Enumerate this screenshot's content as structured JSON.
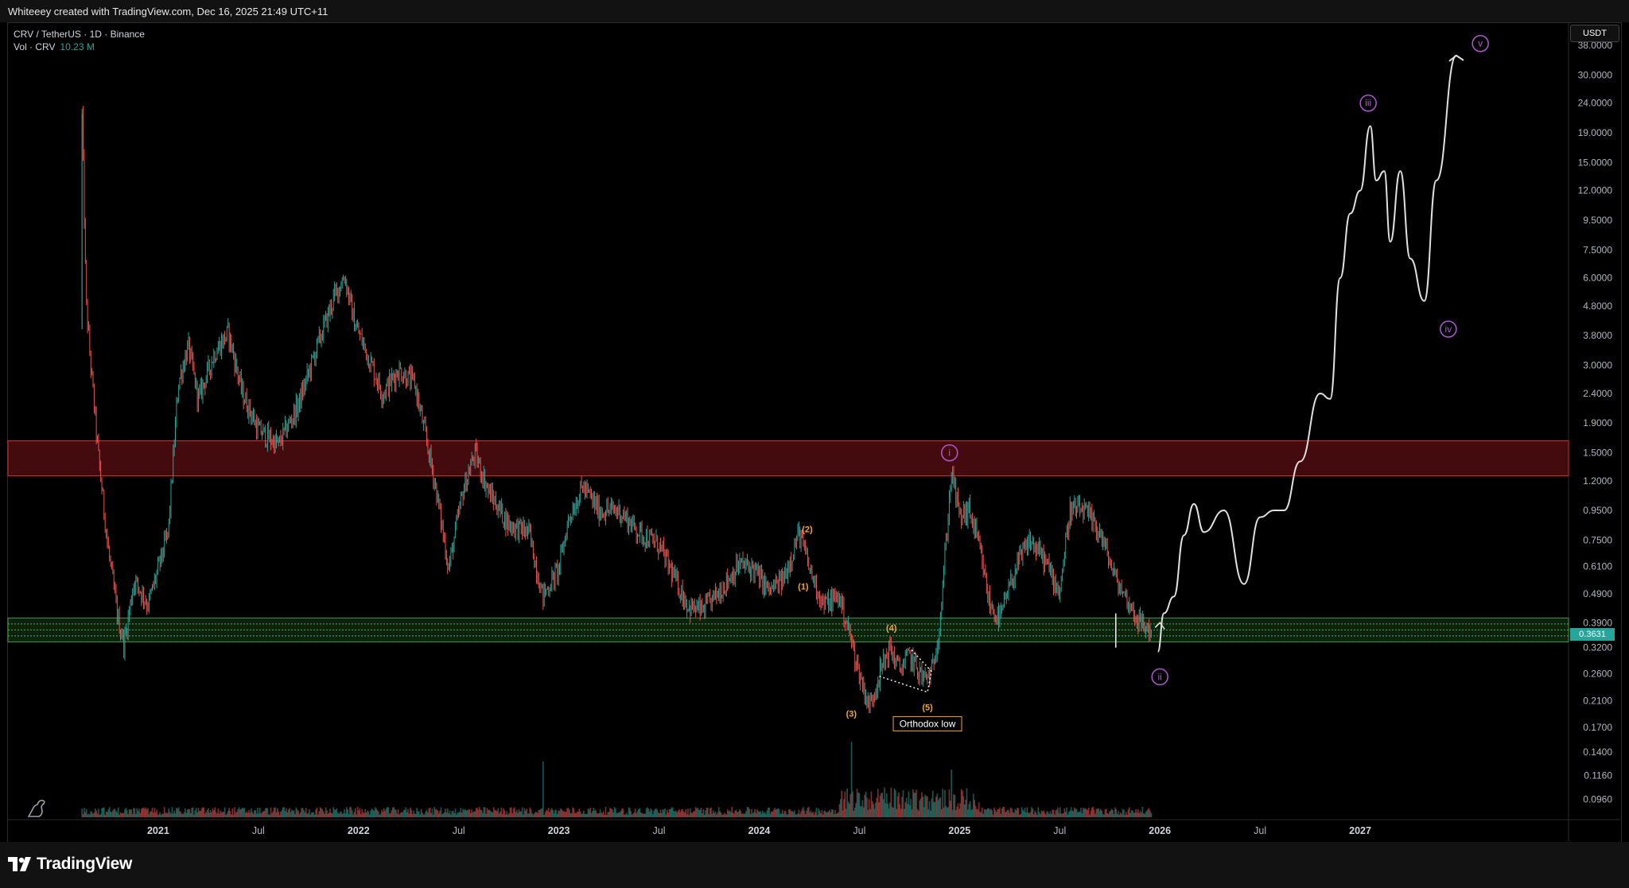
{
  "header": {
    "credit": "Whiteeey created with TradingView.com, Dec 16, 2025 21:49 UTC+11"
  },
  "legend": {
    "symbol_line": "CRV / TetherUS · 1D · Binance",
    "vol_label": "Vol · CRV",
    "vol_value": "10.23 M"
  },
  "currency": "USDT",
  "price_tag": "0.3631",
  "footer": {
    "brand": "TradingView"
  },
  "colors": {
    "bull": "#26a69a",
    "bear": "#ef5350",
    "resistance": "#d32f2f",
    "support": "#43a047",
    "wave_purple": "#b455d6",
    "wave_orange": "#f5a623"
  },
  "chart_data": {
    "type": "candlestick",
    "symbol": "CRV / TetherUS",
    "interval": "1D",
    "exchange": "Binance",
    "y_scale": "log",
    "ylim": [
      0.085,
      45
    ],
    "y_ticks": [
      "38.0000",
      "30.0000",
      "24.0000",
      "19.0000",
      "15.0000",
      "12.0000",
      "9.5000",
      "7.5000",
      "6.0000",
      "4.8000",
      "3.8000",
      "3.0000",
      "2.4000",
      "1.9000",
      "1.5000",
      "1.2000",
      "0.9500",
      "0.7500",
      "0.6100",
      "0.4900",
      "0.3900",
      "0.3200",
      "0.2600",
      "0.2100",
      "0.1700",
      "0.1400",
      "0.1160",
      "0.0960"
    ],
    "x_ticks": [
      {
        "label": "2021",
        "t": 2021.0,
        "bold": true
      },
      {
        "label": "Jul",
        "t": 2021.5,
        "bold": false
      },
      {
        "label": "2022",
        "t": 2022.0,
        "bold": true
      },
      {
        "label": "Jul",
        "t": 2022.5,
        "bold": false
      },
      {
        "label": "2023",
        "t": 2023.0,
        "bold": true
      },
      {
        "label": "Jul",
        "t": 2023.5,
        "bold": false
      },
      {
        "label": "2024",
        "t": 2024.0,
        "bold": true
      },
      {
        "label": "Jul",
        "t": 2024.5,
        "bold": false
      },
      {
        "label": "2025",
        "t": 2025.0,
        "bold": true
      },
      {
        "label": "Jul",
        "t": 2025.5,
        "bold": false
      },
      {
        "label": "2026",
        "t": 2026.0,
        "bold": true
      },
      {
        "label": "Jul",
        "t": 2026.5,
        "bold": false
      },
      {
        "label": "2027",
        "t": 2027.0,
        "bold": true
      }
    ],
    "price_path": [
      [
        2020.62,
        22.0
      ],
      [
        2020.64,
        5.0
      ],
      [
        2020.66,
        3.2
      ],
      [
        2020.7,
        1.5
      ],
      [
        2020.75,
        0.7
      ],
      [
        2020.8,
        0.4
      ],
      [
        2020.83,
        0.33
      ],
      [
        2020.88,
        0.55
      ],
      [
        2020.95,
        0.45
      ],
      [
        2021.0,
        0.6
      ],
      [
        2021.05,
        0.8
      ],
      [
        2021.1,
        2.6
      ],
      [
        2021.15,
        3.5
      ],
      [
        2021.2,
        2.3
      ],
      [
        2021.28,
        3.3
      ],
      [
        2021.35,
        3.9
      ],
      [
        2021.42,
        2.4
      ],
      [
        2021.5,
        1.8
      ],
      [
        2021.6,
        1.6
      ],
      [
        2021.7,
        2.2
      ],
      [
        2021.8,
        3.6
      ],
      [
        2021.88,
        5.2
      ],
      [
        2021.93,
        6.1
      ],
      [
        2021.98,
        4.2
      ],
      [
        2022.05,
        3.2
      ],
      [
        2022.12,
        2.4
      ],
      [
        2022.2,
        2.9
      ],
      [
        2022.28,
        2.6
      ],
      [
        2022.38,
        1.2
      ],
      [
        2022.45,
        0.6
      ],
      [
        2022.52,
        1.1
      ],
      [
        2022.58,
        1.5
      ],
      [
        2022.65,
        1.1
      ],
      [
        2022.75,
        0.85
      ],
      [
        2022.85,
        0.8
      ],
      [
        2022.92,
        0.48
      ],
      [
        2023.0,
        0.6
      ],
      [
        2023.05,
        0.9
      ],
      [
        2023.12,
        1.15
      ],
      [
        2023.2,
        0.95
      ],
      [
        2023.3,
        0.95
      ],
      [
        2023.4,
        0.8
      ],
      [
        2023.5,
        0.72
      ],
      [
        2023.58,
        0.55
      ],
      [
        2023.65,
        0.44
      ],
      [
        2023.72,
        0.43
      ],
      [
        2023.8,
        0.5
      ],
      [
        2023.9,
        0.62
      ],
      [
        2023.97,
        0.6
      ],
      [
        2024.05,
        0.5
      ],
      [
        2024.12,
        0.55
      ],
      [
        2024.2,
        0.8
      ],
      [
        2024.25,
        0.6
      ],
      [
        2024.32,
        0.45
      ],
      [
        2024.4,
        0.48
      ],
      [
        2024.45,
        0.36
      ],
      [
        2024.5,
        0.26
      ],
      [
        2024.55,
        0.2
      ],
      [
        2024.6,
        0.26
      ],
      [
        2024.65,
        0.32
      ],
      [
        2024.7,
        0.27
      ],
      [
        2024.75,
        0.3
      ],
      [
        2024.82,
        0.25
      ],
      [
        2024.86,
        0.26
      ],
      [
        2024.9,
        0.38
      ],
      [
        2024.93,
        0.7
      ],
      [
        2024.96,
        1.3
      ],
      [
        2025.0,
        0.9
      ],
      [
        2025.05,
        0.95
      ],
      [
        2025.1,
        0.7
      ],
      [
        2025.15,
        0.45
      ],
      [
        2025.2,
        0.4
      ],
      [
        2025.28,
        0.6
      ],
      [
        2025.35,
        0.75
      ],
      [
        2025.42,
        0.65
      ],
      [
        2025.5,
        0.5
      ],
      [
        2025.55,
        0.95
      ],
      [
        2025.62,
        0.95
      ],
      [
        2025.7,
        0.8
      ],
      [
        2025.78,
        0.55
      ],
      [
        2025.85,
        0.45
      ],
      [
        2025.9,
        0.39
      ],
      [
        2025.96,
        0.3631
      ]
    ],
    "projection": [
      [
        2025.99,
        0.31
      ],
      [
        2026.02,
        0.42
      ],
      [
        2026.07,
        0.48
      ],
      [
        2026.12,
        0.78
      ],
      [
        2026.17,
        1.0
      ],
      [
        2026.22,
        0.8
      ],
      [
        2026.32,
        0.95
      ],
      [
        2026.42,
        0.53
      ],
      [
        2026.5,
        0.9
      ],
      [
        2026.57,
        0.95
      ],
      [
        2026.62,
        0.95
      ],
      [
        2026.7,
        1.4
      ],
      [
        2026.8,
        2.4
      ],
      [
        2026.85,
        2.3
      ],
      [
        2026.9,
        6.0
      ],
      [
        2026.95,
        10.0
      ],
      [
        2027.0,
        12.0
      ],
      [
        2027.05,
        20.0
      ],
      [
        2027.08,
        13.0
      ],
      [
        2027.12,
        14.0
      ],
      [
        2027.15,
        8.0
      ],
      [
        2027.2,
        14.0
      ],
      [
        2027.25,
        7.0
      ],
      [
        2027.32,
        5.0
      ],
      [
        2027.38,
        13.0
      ],
      [
        2027.48,
        35.0
      ]
    ],
    "zones": [
      {
        "name": "resistance",
        "from": 1.25,
        "to": 1.65,
        "color": "#d32f2f"
      },
      {
        "name": "support",
        "from": 0.335,
        "to": 0.405,
        "color": "#43a047"
      }
    ],
    "annotations": [
      {
        "label": "i",
        "t": 2024.95,
        "price": 1.5,
        "color": "#b455d6",
        "circled": true
      },
      {
        "label": "ii",
        "t": 2026.0,
        "price": 0.254,
        "color": "#b455d6",
        "circled": true
      },
      {
        "label": "iii",
        "t": 2027.04,
        "price": 24.0,
        "color": "#b455d6",
        "circled": true
      },
      {
        "label": "iv",
        "t": 2027.44,
        "price": 4.0,
        "color": "#b455d6",
        "circled": true
      },
      {
        "label": "v",
        "t": 2027.6,
        "price": 38.5,
        "color": "#b455d6",
        "circled": true
      },
      {
        "label": "(1)",
        "t": 2024.22,
        "price": 0.52,
        "color": "#f5a623",
        "circled": false
      },
      {
        "label": "(2)",
        "t": 2024.24,
        "price": 0.82,
        "color": "#f5a623",
        "circled": false
      },
      {
        "label": "(3)",
        "t": 2024.46,
        "price": 0.19,
        "color": "#f5a623",
        "circled": false
      },
      {
        "label": "(4)",
        "t": 2024.66,
        "price": 0.375,
        "color": "#f5a623",
        "circled": false
      },
      {
        "label": "(5)",
        "t": 2024.84,
        "price": 0.2,
        "color": "#f5a623",
        "circled": false
      }
    ],
    "callout": {
      "label": "Orthodox low",
      "t": 2024.84,
      "price": 0.175
    },
    "wedge": [
      [
        2024.6,
        0.255
      ],
      [
        2024.84,
        0.225
      ],
      [
        2024.86,
        0.265
      ],
      [
        2024.75,
        0.32
      ]
    ]
  }
}
